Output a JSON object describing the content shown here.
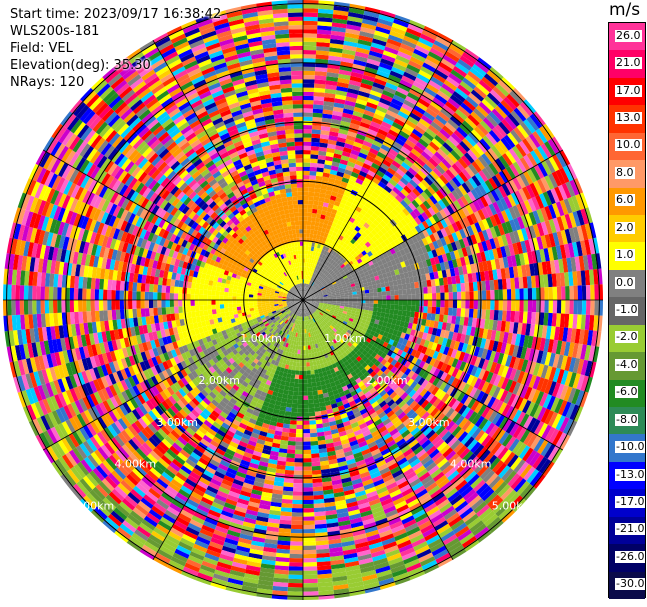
{
  "header": {
    "start_time": "Start time: 2023/09/17 16:38:42",
    "instrument": "WLS200s-181",
    "field": "Field: VEL",
    "elevation": "Elevation(deg): 35.30",
    "nrays": "NRays: 120"
  },
  "colorbar": {
    "unit": "m/s",
    "labels": [
      "26.0",
      "21.0",
      "17.0",
      "13.0",
      "10.0",
      "8.0",
      "6.0",
      "2.0",
      "1.0",
      "0.0",
      "-1.0",
      "-2.0",
      "-4.0",
      "-6.0",
      "-8.0",
      "-10.0",
      "-13.0",
      "-17.0",
      "-21.0",
      "-26.0",
      "-30.0"
    ],
    "colors": [
      "#ff3399",
      "#ff0066",
      "#ff0000",
      "#ff3300",
      "#ff6633",
      "#ff9966",
      "#ff9900",
      "#ffcc00",
      "#ffff00",
      "#808080",
      "#666666",
      "#99cc33",
      "#669933",
      "#228b22",
      "#2e8b57",
      "#3377cc",
      "#0000ff",
      "#0000cc",
      "#000099",
      "#000066",
      "#0a0a4a"
    ]
  },
  "range_labels": [
    "1.00km",
    "1.00km",
    "2.00km",
    "2.00km",
    "3.00km",
    "3.00km",
    "4.00km",
    "4.00km",
    "5.00km",
    "5.00km"
  ],
  "chart_data": {
    "type": "heatmap",
    "subtype": "radar PPI",
    "field": "VEL",
    "units": "m/s",
    "nrays": 120,
    "elevation_deg": 35.3,
    "range_rings_km": [
      1,
      2,
      3,
      4,
      5
    ],
    "colorbar_ticks": [
      26.0,
      21.0,
      17.0,
      13.0,
      10.0,
      8.0,
      6.0,
      2.0,
      1.0,
      0.0,
      -1.0,
      -2.0,
      -4.0,
      -6.0,
      -8.0,
      -10.0,
      -13.0,
      -17.0,
      -21.0,
      -26.0,
      -30.0
    ]
  }
}
